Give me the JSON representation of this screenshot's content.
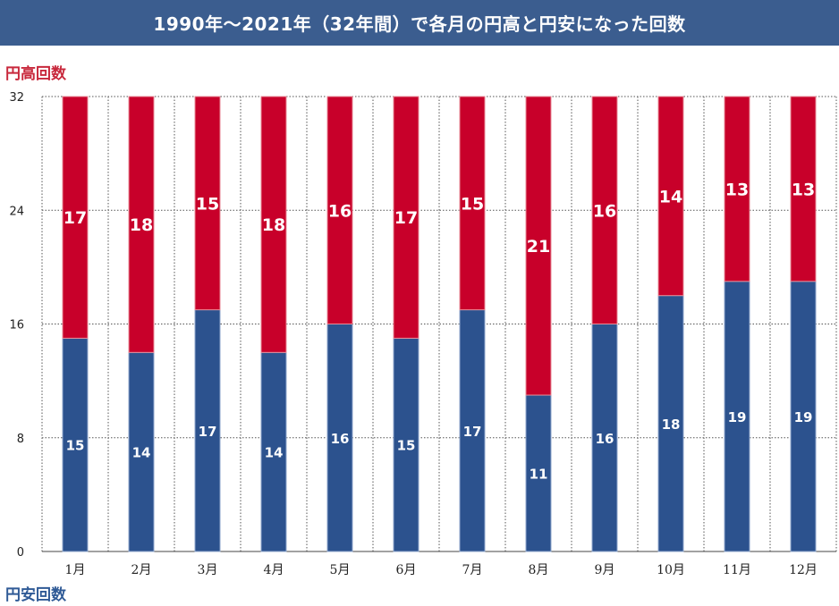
{
  "header": {
    "title": "1990年〜2021年（32年間）で各月の円高と円安になった回数"
  },
  "legend": {
    "high_label": "円高回数",
    "low_label": "円安回数"
  },
  "colors": {
    "title_bg": "#3b5d8f",
    "high": "#c8002a",
    "low": "#2c528e",
    "high_label": "#c8283c",
    "low_label": "#2f5a96"
  },
  "chart_data": {
    "type": "bar",
    "stacked": true,
    "categories": [
      "1月",
      "2月",
      "3月",
      "4月",
      "5月",
      "6月",
      "7月",
      "8月",
      "9月",
      "10月",
      "11月",
      "12月"
    ],
    "series": [
      {
        "name": "円安回数",
        "values": [
          15,
          14,
          17,
          14,
          16,
          15,
          17,
          11,
          16,
          18,
          19,
          19
        ]
      },
      {
        "name": "円高回数",
        "values": [
          17,
          18,
          15,
          18,
          16,
          17,
          15,
          21,
          16,
          14,
          13,
          13
        ]
      }
    ],
    "yticks": [
      0,
      8,
      16,
      24,
      32
    ],
    "ylim": [
      0,
      32
    ],
    "grid": true
  }
}
